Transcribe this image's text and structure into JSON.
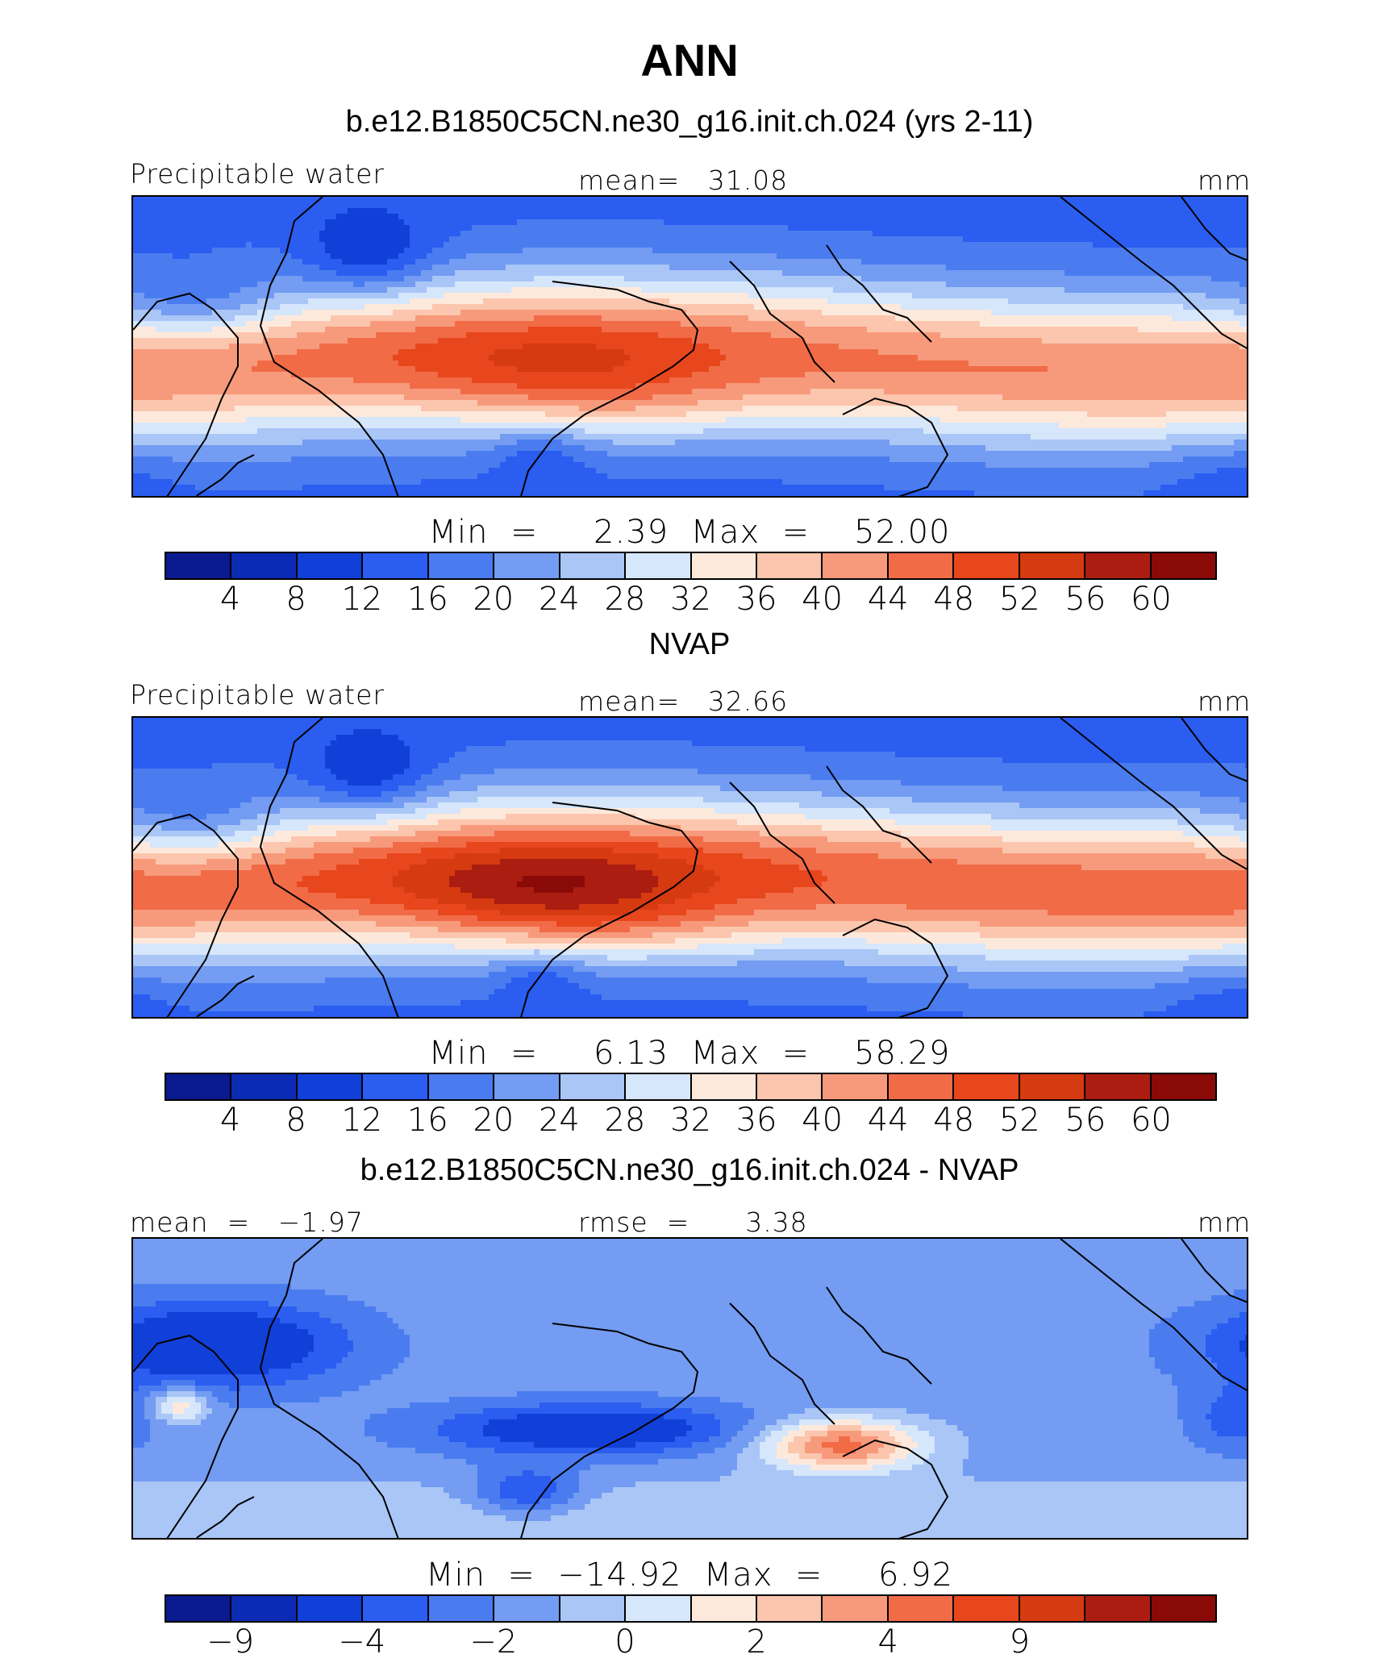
{
  "main_title": "ANN",
  "colors": [
    "#0a1a8f",
    "#0b2bb4",
    "#1040d8",
    "#2a5df0",
    "#4a7cf0",
    "#739cf2",
    "#a9c6f7",
    "#d6e6fb",
    "#fde9dc",
    "#fbc6ad",
    "#f79a7b",
    "#f16b47",
    "#e8461c",
    "#d63a10",
    "#aa1d10",
    "#8a0a08"
  ],
  "panels": [
    {
      "title": "b.e12.B1850C5CN.ne30_g16.init.ch.024 (yrs 2-11)",
      "left_label": "Precipitable water",
      "center_label": "mean=   31.08",
      "right_label": "mm",
      "minmax": "Min  =     2.39  Max  =    52.00",
      "ticks": [
        "4",
        "8",
        "12",
        "16",
        "20",
        "24",
        "28",
        "32",
        "36",
        "40",
        "44",
        "48",
        "52",
        "56",
        "60"
      ],
      "map_field": "pw_model"
    },
    {
      "title": "NVAP",
      "left_label": "Precipitable water",
      "center_label": "mean=   32.66",
      "right_label": "mm",
      "minmax": "Min  =     6.13  Max  =    58.29",
      "ticks": [
        "4",
        "8",
        "12",
        "16",
        "20",
        "24",
        "28",
        "32",
        "36",
        "40",
        "44",
        "48",
        "52",
        "56",
        "60"
      ],
      "map_field": "pw_obs"
    },
    {
      "title": "b.e12.B1850C5CN.ne30_g16.init.ch.024 - NVAP",
      "left_label": "mean  =   −1.97",
      "center_label": "rmse  =      3.38",
      "right_label": "mm",
      "minmax": "Min  =  −14.92  Max  =     6.92",
      "ticks": [
        "−9",
        "",
        "−4",
        "",
        "−2",
        "",
        "0",
        "",
        "2",
        "",
        "4",
        "",
        "9",
        "",
        ""
      ],
      "map_field": "diff"
    }
  ]
}
